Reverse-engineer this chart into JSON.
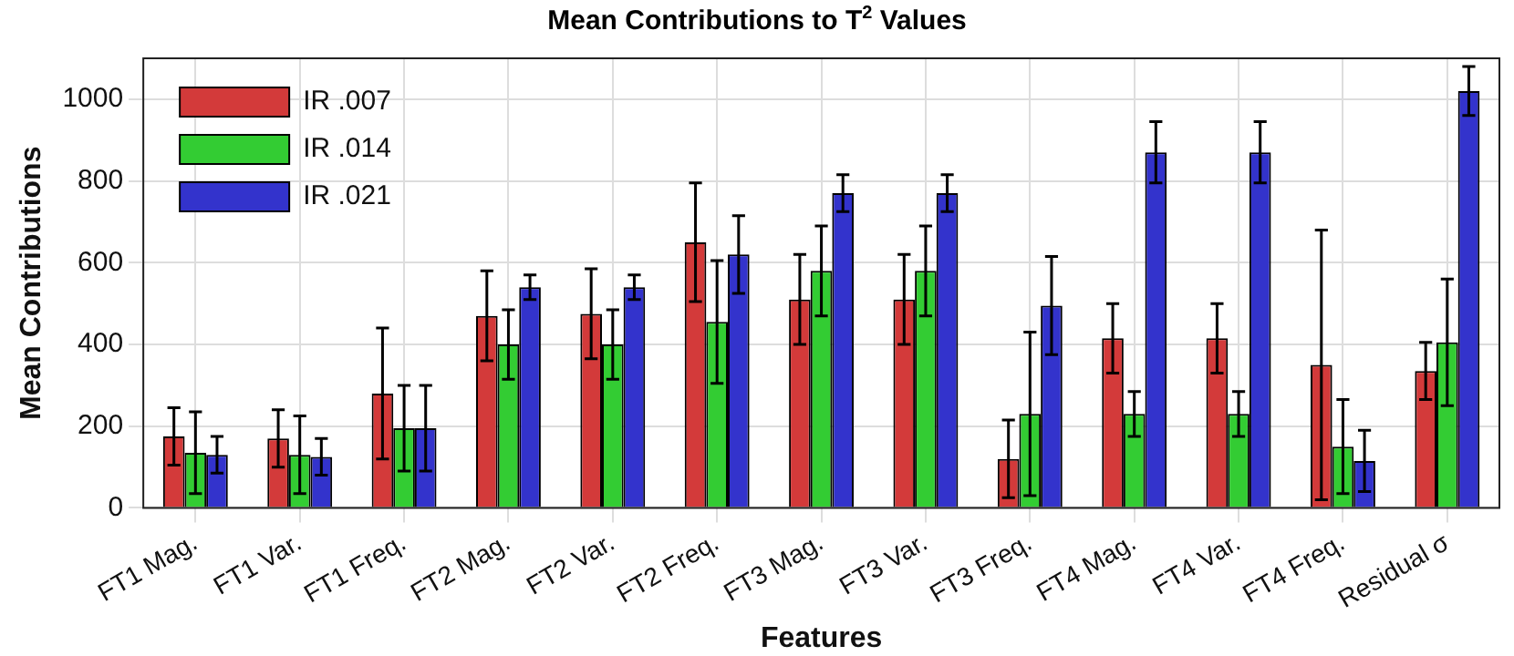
{
  "chart_data": {
    "type": "bar",
    "title": "Mean Contributions to T$^{2}$ Values",
    "xlabel": "Features",
    "ylabel": "Mean Contributions",
    "categories": [
      "FT1 Mag.",
      "FT1 Var.",
      "FT1 Freq.",
      "FT2 Mag.",
      "FT2 Var.",
      "FT2 Freq.",
      "FT3 Mag.",
      "FT3 Var.",
      "FT3 Freq.",
      "FT4 Mag.",
      "FT4 Var.",
      "FT4 Freq.",
      "Residual σ"
    ],
    "series": [
      {
        "name": "IR .007",
        "color": "#d33a3a",
        "values": [
          175,
          170,
          280,
          470,
          475,
          650,
          510,
          510,
          120,
          415,
          415,
          350,
          335
        ],
        "errors": [
          70,
          70,
          160,
          110,
          110,
          145,
          110,
          110,
          95,
          85,
          85,
          330,
          70
        ]
      },
      {
        "name": "IR .014",
        "color": "#33cc33",
        "values": [
          135,
          130,
          195,
          400,
          400,
          455,
          580,
          580,
          230,
          230,
          230,
          150,
          405
        ],
        "errors": [
          100,
          95,
          105,
          85,
          85,
          150,
          110,
          110,
          200,
          55,
          55,
          115,
          155
        ]
      },
      {
        "name": "IR .021",
        "color": "#3333cc",
        "values": [
          130,
          125,
          195,
          540,
          540,
          620,
          770,
          770,
          495,
          870,
          870,
          115,
          1020
        ],
        "errors": [
          45,
          45,
          105,
          30,
          30,
          95,
          45,
          45,
          120,
          75,
          75,
          75,
          60
        ]
      }
    ],
    "ylim": [
      0,
      1100
    ],
    "yticks": [
      0,
      200,
      400,
      600,
      800,
      1000
    ],
    "grid": true,
    "legend": "top left"
  }
}
